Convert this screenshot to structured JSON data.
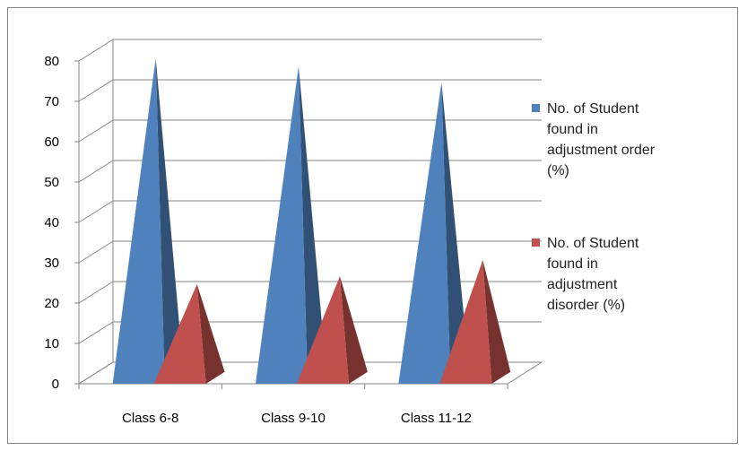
{
  "chart_data": {
    "type": "bar",
    "style": "3d-pyramid",
    "title": "",
    "xlabel": "",
    "ylabel": "",
    "categories": [
      "Class 6-8",
      "Class 9-10",
      "Class 11-12"
    ],
    "series": [
      {
        "name": "No. of Student found in adjustment order (%)",
        "legend_lines": [
          "No. of Student",
          "found in",
          "adjustment order",
          "(%)"
        ],
        "color": "#4f81bd",
        "values": [
          78,
          76,
          72
        ]
      },
      {
        "name": "No. of Student found in adjustment disorder (%)",
        "legend_lines": [
          "No. of Student",
          "found in",
          "adjustment",
          "disorder (%)"
        ],
        "color": "#c0504d",
        "values": [
          22,
          24,
          28
        ]
      }
    ],
    "ylim": [
      0,
      80
    ],
    "yticks": [
      "0",
      "10",
      "20",
      "30",
      "40",
      "50",
      "60",
      "70",
      "80"
    ],
    "grid": true,
    "legend_position": "right"
  }
}
